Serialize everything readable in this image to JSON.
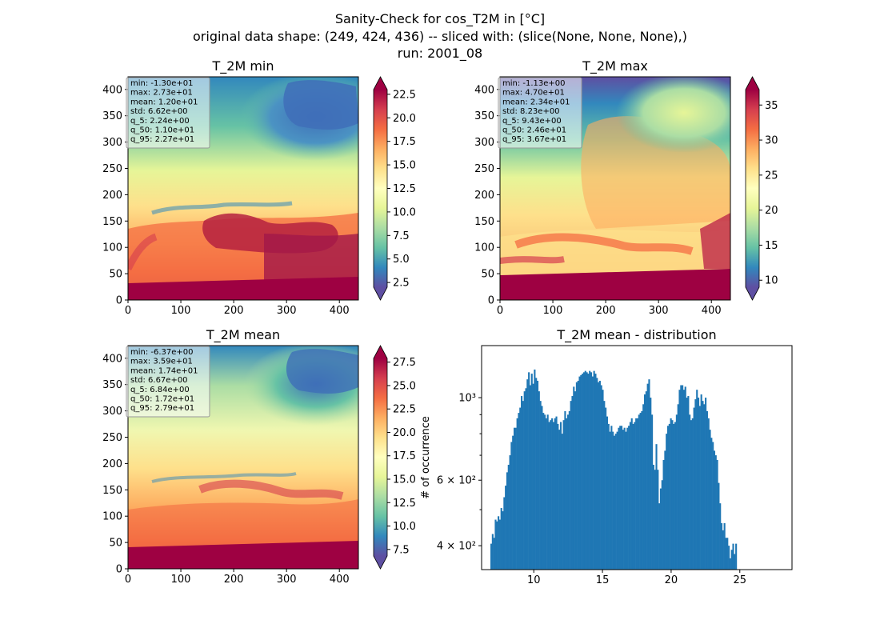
{
  "figure": {
    "suptitle_line1": "Sanity-Check for cos_T2M in [°C]",
    "suptitle_line2": "original data shape: (249, 424, 436) -- sliced with: (slice(None, None, None),)",
    "suptitle_line3": "run: 2001_08"
  },
  "colors": {
    "histogram": "#1f77b4",
    "colormap": "Spectral_r"
  },
  "chart_data": [
    {
      "type": "heatmap",
      "title": "T_2M min",
      "xlim": [
        0,
        436
      ],
      "ylim": [
        0,
        424
      ],
      "xticks": [
        "0",
        "100",
        "200",
        "300",
        "400"
      ],
      "yticks": [
        "0",
        "50",
        "100",
        "150",
        "200",
        "250",
        "300",
        "350",
        "400"
      ],
      "colorbar": {
        "vmin": 2.0,
        "vmax": 23.0,
        "extend": "both",
        "ticks": [
          "2.5",
          "5.0",
          "7.5",
          "10.0",
          "12.5",
          "15.0",
          "17.5",
          "20.0",
          "22.5"
        ]
      },
      "stats": [
        "min: -1.30e+01",
        "max: 2.73e+01",
        "mean: 1.20e+01",
        "std: 6.62e+00",
        "q_5: 2.24e+00",
        "q_50: 1.10e+01",
        "q_95: 2.27e+01"
      ]
    },
    {
      "type": "heatmap",
      "title": "T_2M max",
      "xlim": [
        0,
        436
      ],
      "ylim": [
        0,
        424
      ],
      "xticks": [
        "0",
        "100",
        "200",
        "300",
        "400"
      ],
      "yticks": [
        "0",
        "50",
        "100",
        "150",
        "200",
        "250",
        "300",
        "350",
        "400"
      ],
      "colorbar": {
        "vmin": 9.0,
        "vmax": 37.2,
        "extend": "both",
        "ticks": [
          "10",
          "15",
          "20",
          "25",
          "30",
          "35"
        ]
      },
      "stats": [
        "min: -1.13e+00",
        "max: 4.70e+01",
        "mean: 2.34e+01",
        "std: 8.23e+00",
        "q_5: 9.43e+00",
        "q_50: 2.46e+01",
        "q_95: 3.67e+01"
      ]
    },
    {
      "type": "heatmap",
      "title": "T_2M mean",
      "xlim": [
        0,
        436
      ],
      "ylim": [
        0,
        424
      ],
      "xticks": [
        "0",
        "100",
        "200",
        "300",
        "400"
      ],
      "yticks": [
        "0",
        "50",
        "100",
        "150",
        "200",
        "250",
        "300",
        "350",
        "400"
      ],
      "colorbar": {
        "vmin": 6.8,
        "vmax": 27.9,
        "extend": "both",
        "ticks": [
          "7.5",
          "10.0",
          "12.5",
          "15.0",
          "17.5",
          "20.0",
          "22.5",
          "25.0",
          "27.5"
        ]
      },
      "stats": [
        "min: -6.37e+00",
        "max: 3.59e+01",
        "mean: 1.74e+01",
        "std: 6.67e+00",
        "q_5: 6.84e+00",
        "q_50: 1.72e+01",
        "q_95: 2.79e+01"
      ]
    },
    {
      "type": "bar",
      "title": "T_2M mean - distribution",
      "ylabel": "# of occurrence",
      "yscale": "log",
      "xlim": [
        6.2,
        28.8
      ],
      "ylim": [
        345,
        1380
      ],
      "xticks": [
        10,
        15,
        20,
        25
      ],
      "xtick_labels": [
        "10",
        "15",
        "20",
        "25"
      ],
      "yticks_major": [
        400,
        600,
        1000
      ],
      "yticks_minor": [
        500,
        700,
        800,
        900
      ],
      "ytick_labels": [
        "4 × 10²",
        "6 × 10²",
        "10³"
      ],
      "bin_start": 6.84,
      "bin_width": 0.1055,
      "values": [
        405,
        430,
        420,
        470,
        465,
        480,
        470,
        505,
        495,
        540,
        580,
        630,
        660,
        700,
        760,
        790,
        830,
        830,
        880,
        910,
        940,
        1010,
        980,
        1040,
        1060,
        1120,
        1170,
        1080,
        1160,
        1090,
        1190,
        1130,
        1110,
        1040,
        980,
        950,
        910,
        900,
        880,
        900,
        860,
        870,
        880,
        860,
        880,
        890,
        850,
        820,
        860,
        800,
        870,
        920,
        880,
        900,
        920,
        980,
        1010,
        1070,
        1040,
        1100,
        1110,
        1140,
        1150,
        1160,
        1170,
        1180,
        1170,
        1160,
        1180,
        1170,
        1140,
        1180,
        1160,
        1130,
        1100,
        1110,
        1080,
        1050,
        980,
        940,
        890,
        850,
        810,
        840,
        810,
        790,
        800,
        810,
        830,
        840,
        840,
        820,
        830,
        810,
        830,
        840,
        860,
        880,
        850,
        860,
        880,
        880,
        900,
        910,
        920,
        960,
        1020,
        1040,
        1090,
        1120,
        1000,
        900,
        660,
        640,
        750,
        640,
        520,
        570,
        600,
        680,
        720,
        800,
        840,
        850,
        880,
        870,
        850,
        860,
        900,
        960,
        1050,
        1080,
        1080,
        1050,
        1070,
        1000,
        1010,
        900,
        870,
        880,
        940,
        990,
        1050,
        1000,
        950,
        1020,
        980,
        960,
        1000,
        920,
        880,
        820,
        780,
        760,
        720,
        700,
        680,
        590,
        520,
        460,
        440,
        460,
        420,
        420,
        400,
        370,
        390,
        405,
        380,
        405
      ]
    }
  ]
}
